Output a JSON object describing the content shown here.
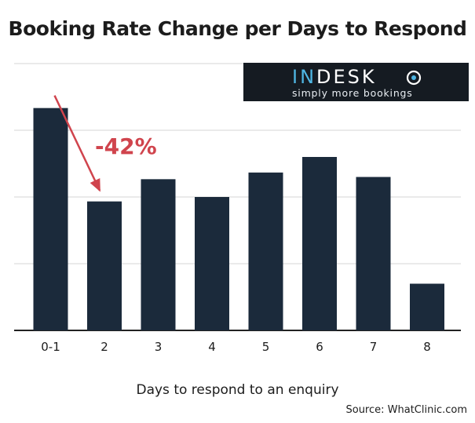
{
  "chart_data": {
    "type": "bar",
    "title": "Booking Rate Change per Days to Respond",
    "xlabel": "Days to respond to an enquiry",
    "ylabel": "",
    "categories": [
      "0-1",
      "2",
      "3",
      "4",
      "5",
      "6",
      "7",
      "8"
    ],
    "values": [
      100,
      58,
      68,
      60,
      71,
      78,
      69,
      21
    ],
    "ylim": [
      0,
      120
    ],
    "grid": true,
    "bar_color": "#1b2a3b",
    "annotation": {
      "text": "-42%",
      "color": "#d0444d",
      "from_category": "0-1",
      "to_category": "2"
    },
    "source": "Source: WhatClinic.com"
  },
  "logo": {
    "brand_in": "IN",
    "brand_rest": "DESK",
    "tagline": "simply more bookings",
    "accent": "#4fb6e3"
  }
}
